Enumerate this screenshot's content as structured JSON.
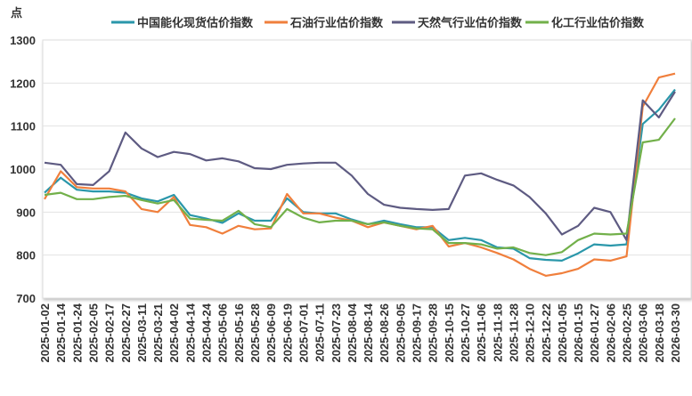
{
  "chart_data": {
    "type": "line",
    "title": "",
    "ylabel": "点",
    "ylim": [
      700,
      1300
    ],
    "yticks": [
      700,
      800,
      900,
      1000,
      1100,
      1200,
      1300
    ],
    "grid": true,
    "legend_placement": "top",
    "categories": [
      "2025-01-02",
      "2025-01-14",
      "2025-01-24",
      "2025-02-05",
      "2025-02-17",
      "2025-02-27",
      "2025-03-11",
      "2025-03-21",
      "2025-04-02",
      "2025-04-14",
      "2025-04-24",
      "2025-05-06",
      "2025-05-16",
      "2025-05-28",
      "2025-06-09",
      "2025-06-19",
      "2025-07-01",
      "2025-07-11",
      "2025-07-23",
      "2025-08-04",
      "2025-08-14",
      "2025-08-26",
      "2025-09-05",
      "2025-09-17",
      "2025-09-28",
      "2025-10-15",
      "2025-10-27",
      "2025-11-06",
      "2025-11-18",
      "2025-11-28",
      "2025-12-10",
      "2025-12-22",
      "2026-01-05",
      "2026-01-15",
      "2026-01-27",
      "2026-02-06",
      "2026-02-25",
      "2026-03-06",
      "2026-03-18",
      "2026-03-30"
    ],
    "series": [
      {
        "name": "中国能化现货估价指数",
        "color": "#2a97aa",
        "values": [
          945,
          980,
          952,
          948,
          948,
          945,
          932,
          925,
          940,
          893,
          885,
          875,
          897,
          880,
          880,
          932,
          900,
          897,
          897,
          883,
          872,
          880,
          872,
          865,
          865,
          835,
          840,
          835,
          818,
          815,
          793,
          789,
          787,
          804,
          825,
          822,
          825,
          1105,
          1138,
          1185
        ]
      },
      {
        "name": "石油行业估价指数",
        "color": "#f07f3c",
        "values": [
          930,
          995,
          958,
          955,
          955,
          948,
          907,
          900,
          935,
          870,
          865,
          850,
          868,
          860,
          862,
          942,
          897,
          897,
          887,
          880,
          865,
          876,
          868,
          860,
          868,
          820,
          828,
          818,
          805,
          790,
          768,
          752,
          758,
          768,
          790,
          787,
          797,
          1145,
          1213,
          1222
        ]
      },
      {
        "name": "天然气行业估价指数",
        "color": "#5e5b82",
        "values": [
          1015,
          1010,
          965,
          963,
          995,
          1085,
          1048,
          1028,
          1040,
          1035,
          1020,
          1025,
          1018,
          1002,
          1000,
          1010,
          1013,
          1015,
          1015,
          985,
          942,
          917,
          910,
          907,
          905,
          907,
          985,
          990,
          975,
          962,
          935,
          897,
          848,
          868,
          910,
          900,
          835,
          1160,
          1120,
          1180
        ]
      },
      {
        "name": "化工行业估价指数",
        "color": "#72b04a",
        "values": [
          940,
          945,
          930,
          930,
          935,
          938,
          928,
          920,
          928,
          885,
          882,
          880,
          903,
          872,
          865,
          907,
          887,
          876,
          880,
          880,
          872,
          876,
          868,
          862,
          860,
          828,
          828,
          825,
          815,
          818,
          805,
          800,
          807,
          835,
          850,
          848,
          850,
          1062,
          1068,
          1118
        ]
      }
    ]
  }
}
